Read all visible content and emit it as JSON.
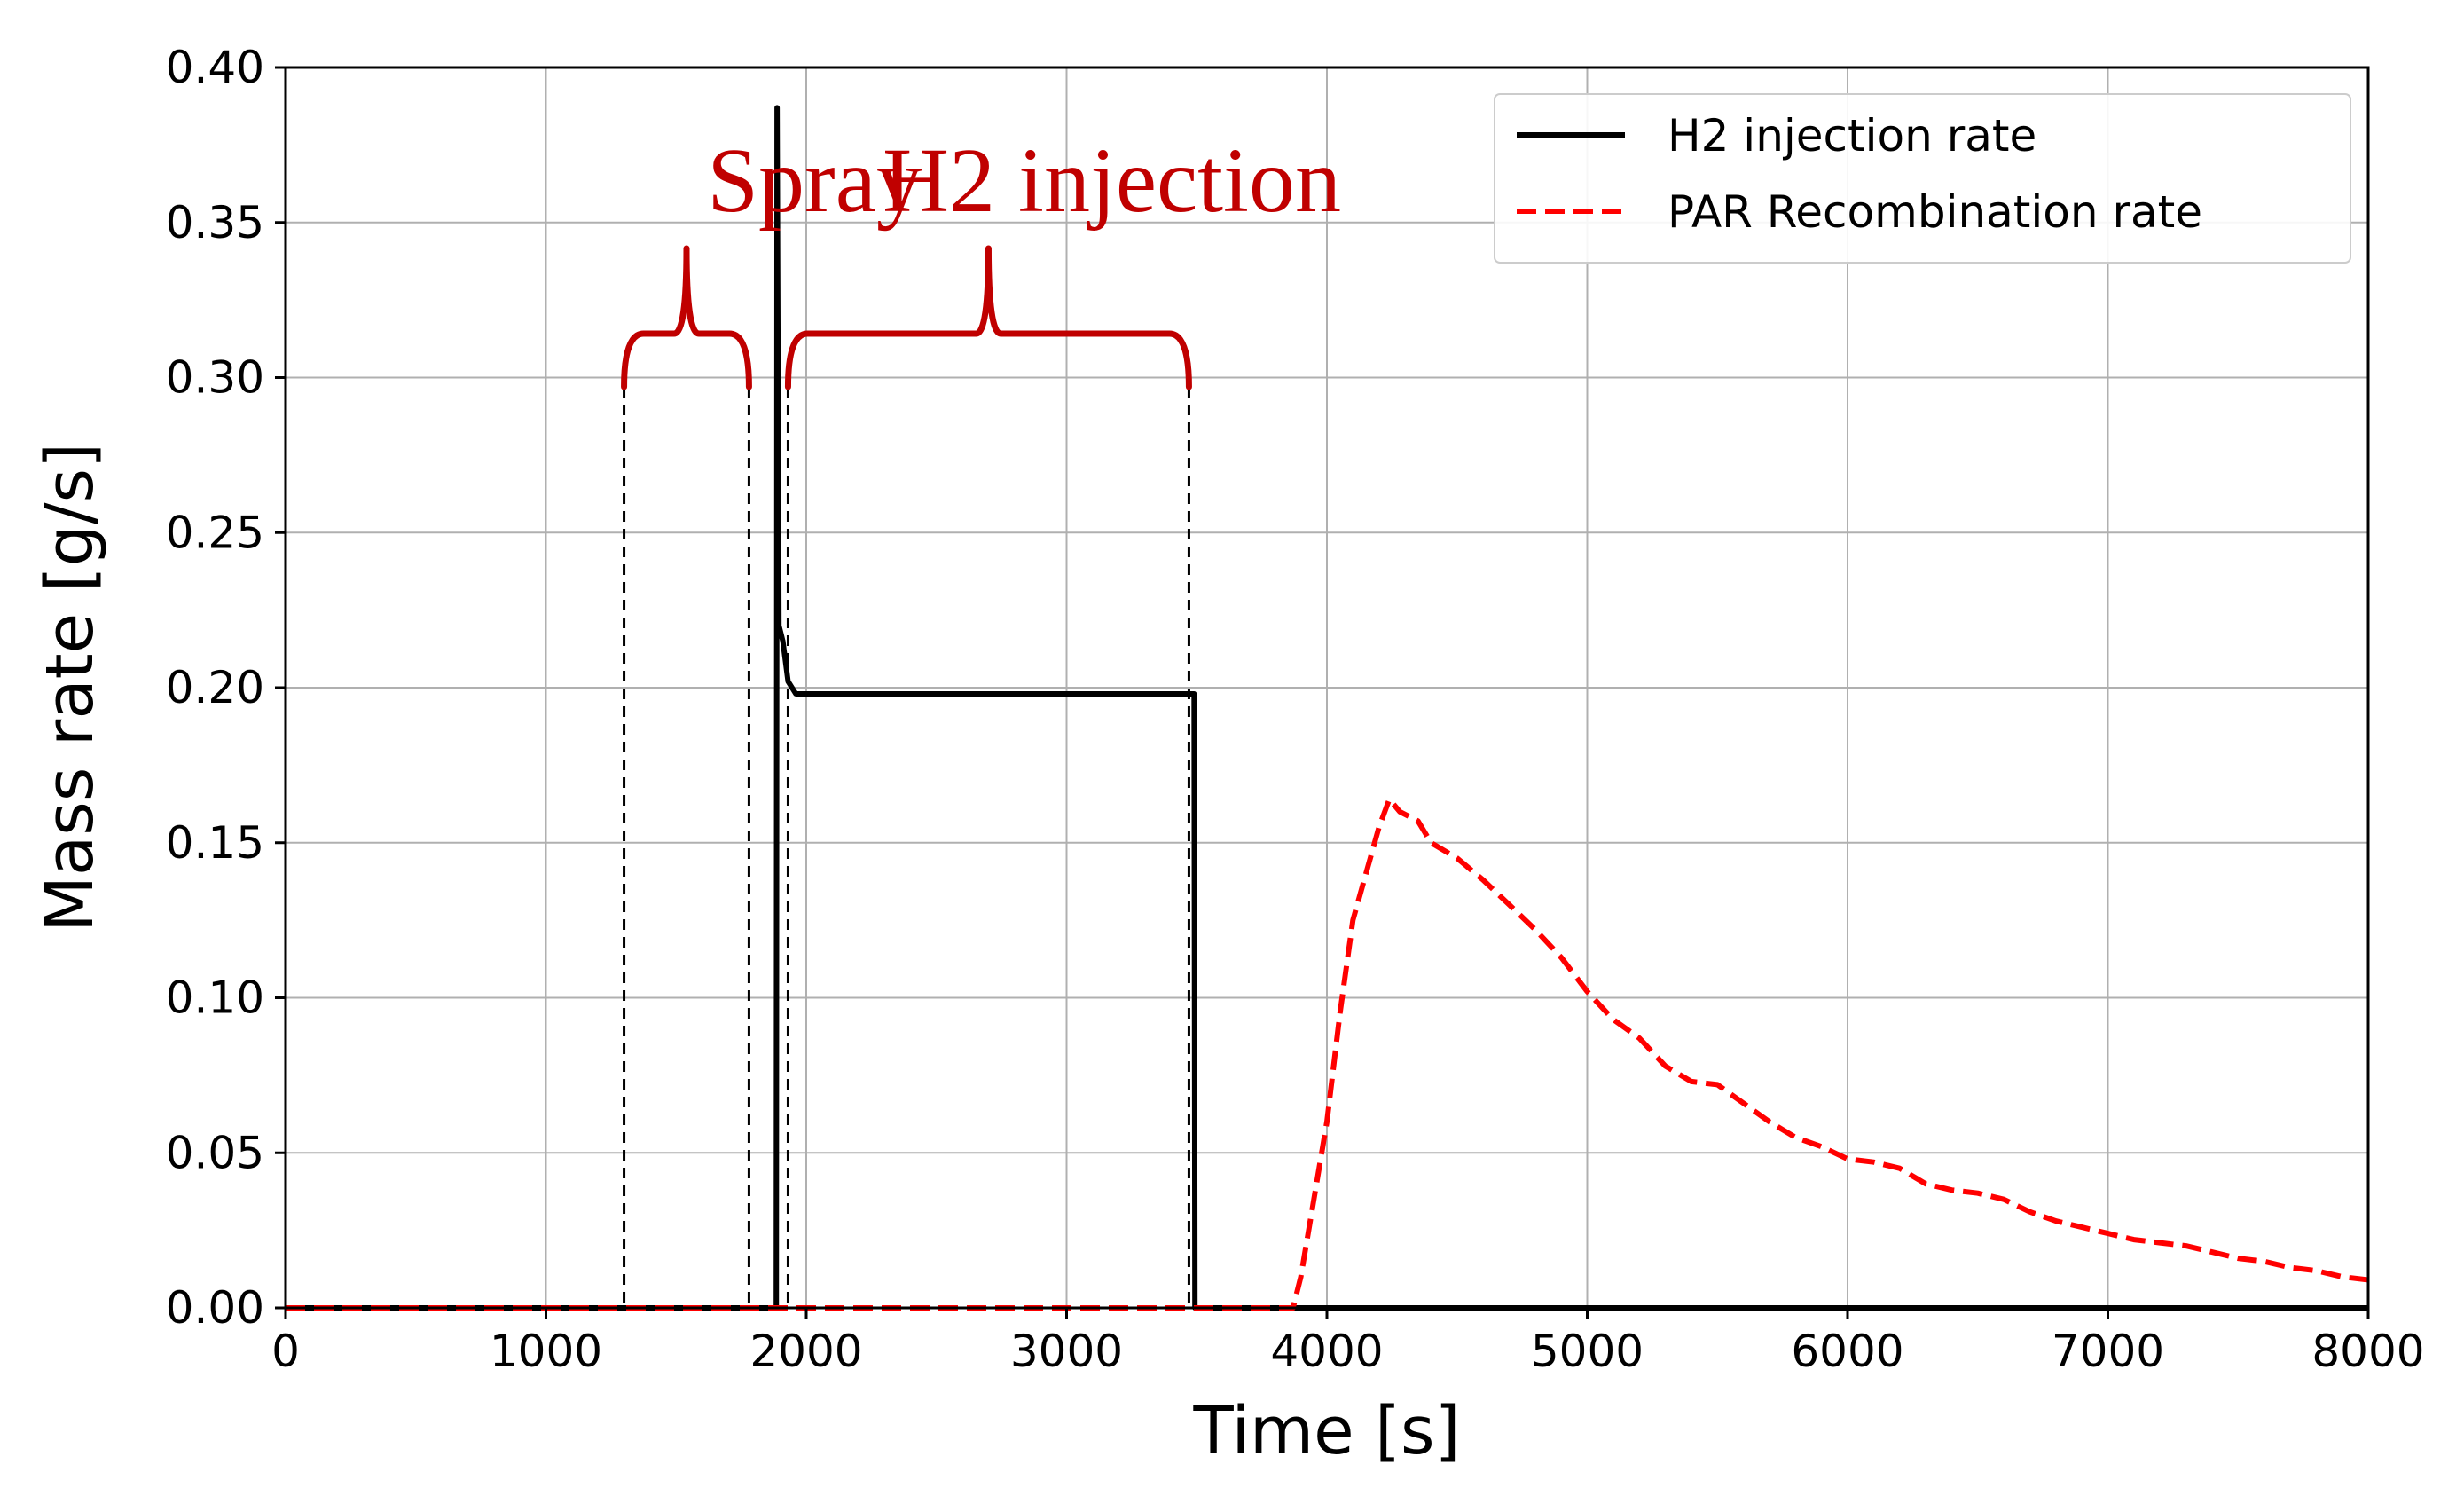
{
  "chart_data": {
    "type": "line",
    "title": "",
    "xlabel": "Time [s]",
    "ylabel": "Mass rate [g/s]",
    "xlim": [
      0,
      8000
    ],
    "ylim": [
      0,
      0.4
    ],
    "xticks": [
      0,
      1000,
      2000,
      3000,
      4000,
      5000,
      6000,
      7000,
      8000
    ],
    "xtick_labels": [
      "0",
      "1000",
      "2000",
      "3000",
      "4000",
      "5000",
      "6000",
      "7000",
      "8000"
    ],
    "yticks": [
      0,
      0.05,
      0.1,
      0.15,
      0.2,
      0.25,
      0.3,
      0.35,
      0.4
    ],
    "ytick_labels": [
      "0.00",
      "0.05",
      "0.10",
      "0.15",
      "0.20",
      "0.25",
      "0.30",
      "0.35",
      "0.40"
    ],
    "grid": true,
    "legend_position": "top-right",
    "series": [
      {
        "name": "H2 injection rate",
        "color": "#000000",
        "style": "solid",
        "points": [
          [
            0,
            0
          ],
          [
            1885,
            0
          ],
          [
            1888,
            0.387
          ],
          [
            1895,
            0.22
          ],
          [
            1910,
            0.215
          ],
          [
            1930,
            0.202
          ],
          [
            1960,
            0.198
          ],
          [
            2200,
            0.198
          ],
          [
            2600,
            0.198
          ],
          [
            3000,
            0.198
          ],
          [
            3400,
            0.198
          ],
          [
            3490,
            0.198
          ],
          [
            3493,
            0
          ],
          [
            8000,
            0
          ]
        ]
      },
      {
        "name": "PAR Recombination rate",
        "color": "#ff0000",
        "style": "dashed",
        "points": [
          [
            0,
            0
          ],
          [
            3870,
            0
          ],
          [
            3900,
            0.01
          ],
          [
            3950,
            0.035
          ],
          [
            4000,
            0.06
          ],
          [
            4050,
            0.095
          ],
          [
            4100,
            0.125
          ],
          [
            4150,
            0.14
          ],
          [
            4200,
            0.155
          ],
          [
            4240,
            0.164
          ],
          [
            4280,
            0.16
          ],
          [
            4350,
            0.157
          ],
          [
            4400,
            0.15
          ],
          [
            4500,
            0.145
          ],
          [
            4600,
            0.138
          ],
          [
            4700,
            0.13
          ],
          [
            4800,
            0.122
          ],
          [
            4900,
            0.113
          ],
          [
            5000,
            0.102
          ],
          [
            5100,
            0.093
          ],
          [
            5200,
            0.087
          ],
          [
            5300,
            0.078
          ],
          [
            5400,
            0.073
          ],
          [
            5500,
            0.072
          ],
          [
            5600,
            0.066
          ],
          [
            5700,
            0.06
          ],
          [
            5800,
            0.055
          ],
          [
            5900,
            0.052
          ],
          [
            6000,
            0.048
          ],
          [
            6100,
            0.047
          ],
          [
            6200,
            0.045
          ],
          [
            6300,
            0.04
          ],
          [
            6400,
            0.038
          ],
          [
            6500,
            0.037
          ],
          [
            6600,
            0.035
          ],
          [
            6700,
            0.031
          ],
          [
            6800,
            0.028
          ],
          [
            6900,
            0.026
          ],
          [
            7000,
            0.024
          ],
          [
            7100,
            0.022
          ],
          [
            7200,
            0.021
          ],
          [
            7300,
            0.02
          ],
          [
            7400,
            0.018
          ],
          [
            7500,
            0.016
          ],
          [
            7600,
            0.015
          ],
          [
            7700,
            0.013
          ],
          [
            7800,
            0.012
          ],
          [
            7900,
            0.01
          ],
          [
            8000,
            0.009
          ]
        ]
      }
    ],
    "annotations": [
      {
        "text": "Spray",
        "x_start": 1300,
        "x_end": 1780,
        "color": "#c00000"
      },
      {
        "text": "H2 injection",
        "x_start": 1930,
        "x_end": 3470,
        "color": "#c00000"
      }
    ]
  }
}
